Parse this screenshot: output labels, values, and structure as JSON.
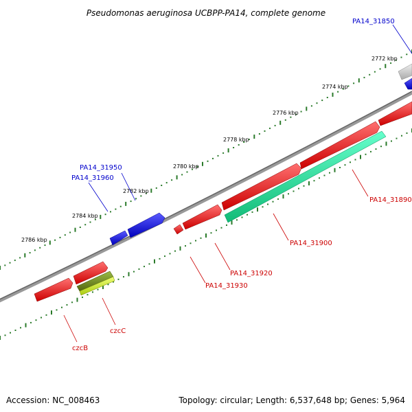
{
  "title": "Pseudomonas aeruginosa UCBPP-PA14, complete genome",
  "accession": "Accession: NC_008463",
  "summary": "Topology: circular; Length: 6,537,648 bp; Genes: 5,964",
  "colors": {
    "backbone": "#888888",
    "tick": "#2a7a2a",
    "forward_gene": "#ee1111",
    "reverse_gene": "#1111ee",
    "label_forward": "#cc0000",
    "label_reverse": "#0000cc",
    "cds_cyan": "#22dd99",
    "cds_olive": "#779922",
    "cds_lime": "#ccee33",
    "pseudo_gray": "#cccccc"
  },
  "kbp_labels": [
    "2772 kbp",
    "2774 kbp",
    "2776 kbp",
    "2778 kbp",
    "2780 kbp",
    "2782 kbp",
    "2784 kbp",
    "2786 kbp"
  ],
  "gene_labels": [
    {
      "text": "PA14_31850",
      "strand": "reverse"
    },
    {
      "text": "PA14_31950",
      "strand": "reverse"
    },
    {
      "text": "PA14_31960",
      "strand": "reverse"
    },
    {
      "text": "PA14_31890",
      "strand": "forward"
    },
    {
      "text": "PA14_31900",
      "strand": "forward"
    },
    {
      "text": "PA14_31920",
      "strand": "forward"
    },
    {
      "text": "PA14_31930",
      "strand": "forward"
    },
    {
      "text": "czcC",
      "strand": "forward"
    },
    {
      "text": "czcB",
      "strand": "forward"
    }
  ]
}
